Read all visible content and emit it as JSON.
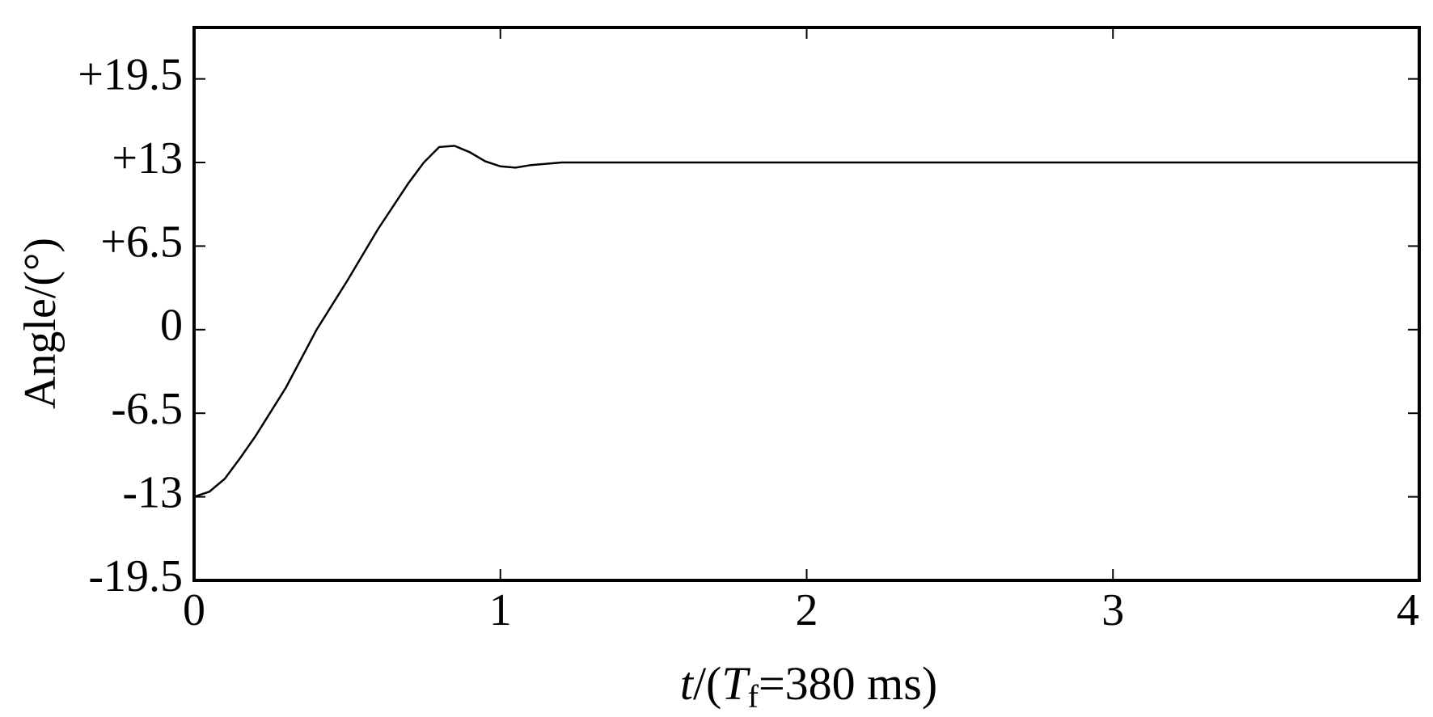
{
  "chart_data": {
    "type": "line",
    "ylabel": "Angle/(°)",
    "xlabel": [
      "t",
      "/(",
      "T",
      "f",
      "=380 ms)"
    ],
    "x": [
      0,
      0.05,
      0.1,
      0.15,
      0.2,
      0.3,
      0.4,
      0.5,
      0.6,
      0.7,
      0.75,
      0.8,
      0.85,
      0.9,
      0.95,
      1.0,
      1.05,
      1.1,
      1.2,
      1.3,
      2,
      3,
      4
    ],
    "series": [
      {
        "color": "#000000",
        "values": [
          -13,
          -12.6,
          -11.6,
          -10,
          -8.3,
          -4.5,
          0,
          3.8,
          7.8,
          11.4,
          13,
          14.2,
          14.3,
          13.8,
          13.1,
          12.7,
          12.6,
          12.8,
          13,
          13,
          13,
          13,
          13
        ]
      }
    ],
    "xlim": [
      0,
      4
    ],
    "xticks": [
      0,
      1,
      2,
      3,
      4
    ],
    "ylim": [
      -19.5,
      23.5
    ],
    "yticks": [
      -19.5,
      -13,
      -6.5,
      0,
      {
        "value": 6.5,
        "label": "+6.5"
      },
      {
        "value": 13,
        "label": "+13"
      },
      {
        "value": 19.5,
        "label": "+19.5"
      }
    ]
  }
}
